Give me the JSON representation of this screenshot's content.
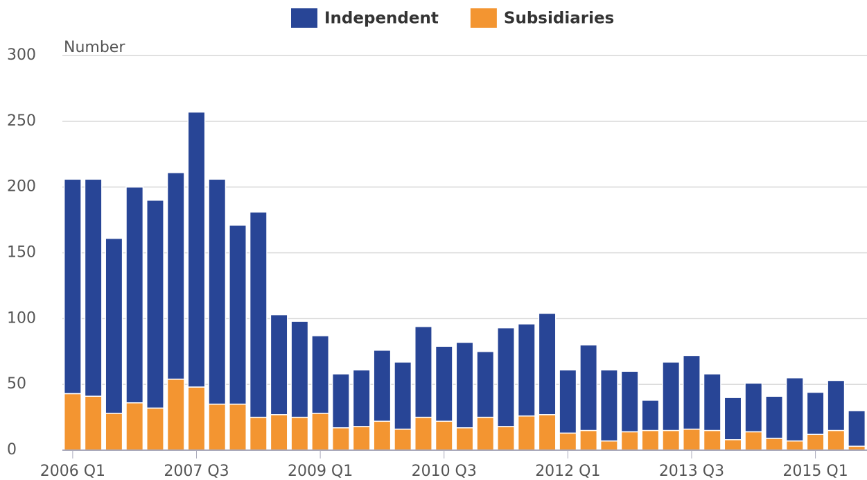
{
  "chart_data": {
    "type": "stacked-bar",
    "y_label": "Number",
    "categories": [
      "2006 Q1",
      null,
      null,
      null,
      null,
      null,
      "2007 Q3",
      null,
      null,
      null,
      null,
      null,
      "2009 Q1",
      null,
      null,
      null,
      null,
      null,
      "2010 Q3",
      null,
      null,
      null,
      null,
      null,
      "2012 Q1",
      null,
      null,
      null,
      null,
      null,
      "2013 Q3",
      null,
      null,
      null,
      null,
      null,
      "2015 Q1",
      null,
      null
    ],
    "series": [
      {
        "name": "Independent",
        "color": "#284596",
        "values": [
          163,
          165,
          133,
          164,
          158,
          157,
          209,
          171,
          136,
          156,
          76,
          73,
          59,
          41,
          43,
          54,
          51,
          69,
          57,
          65,
          50,
          75,
          70,
          77,
          48,
          65,
          54,
          46,
          23,
          52,
          56,
          43,
          32,
          37,
          32,
          48,
          32,
          38,
          27
        ]
      },
      {
        "name": "Subsidiaries",
        "color": "#f39531",
        "values": [
          43,
          41,
          28,
          36,
          32,
          54,
          48,
          35,
          35,
          25,
          27,
          25,
          28,
          17,
          18,
          22,
          16,
          25,
          22,
          17,
          25,
          18,
          26,
          27,
          13,
          15,
          7,
          14,
          15,
          15,
          16,
          15,
          8,
          14,
          9,
          7,
          12,
          15,
          3
        ]
      }
    ],
    "ylim": [
      0,
      300
    ],
    "yticks": [
      0,
      50,
      100,
      150,
      200,
      250,
      300
    ],
    "grid": true,
    "legend": "top"
  }
}
